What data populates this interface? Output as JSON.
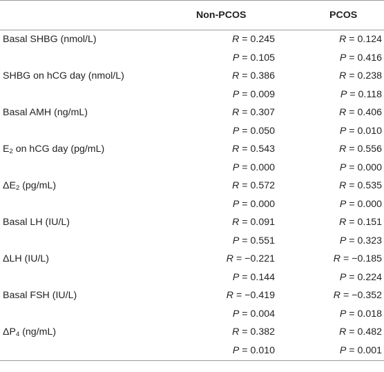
{
  "table": {
    "headers": [
      "",
      "Non-PCOS",
      "PCOS"
    ],
    "rows": [
      {
        "variable": "Basal SHBG (nmol/L)",
        "non_pcos_R": "0.245",
        "non_pcos_P": "0.105",
        "pcos_R": "0.124",
        "pcos_P": "0.416"
      },
      {
        "variable": "SHBG on hCG day (nmol/L)",
        "non_pcos_R": "0.386",
        "non_pcos_P": "0.009",
        "pcos_R": "0.238",
        "pcos_P": "0.118"
      },
      {
        "variable": "Basal AMH (ng/mL)",
        "non_pcos_R": "0.307",
        "non_pcos_P": "0.050",
        "pcos_R": "0.406",
        "pcos_P": "0.010"
      },
      {
        "variable": "E2 on hCG day (pg/mL)",
        "non_pcos_R": "0.543",
        "non_pcos_P": "0.000",
        "pcos_R": "0.556",
        "pcos_P": "0.000"
      },
      {
        "variable": "ΔE2 (pg/mL)",
        "non_pcos_R": "0.572",
        "non_pcos_P": "0.000",
        "pcos_R": "0.535",
        "pcos_P": "0.000"
      },
      {
        "variable": "Basal LH (IU/L)",
        "non_pcos_R": "0.091",
        "non_pcos_P": "0.551",
        "pcos_R": "0.151",
        "pcos_P": "0.323"
      },
      {
        "variable": "ΔLH (IU/L)",
        "non_pcos_R": "−0.221",
        "non_pcos_P": "0.144",
        "pcos_R": "−0.185",
        "pcos_P": "0.224"
      },
      {
        "variable": "Basal FSH (IU/L)",
        "non_pcos_R": "−0.419",
        "non_pcos_P": "0.004",
        "pcos_R": "−0.352",
        "pcos_P": "0.018"
      },
      {
        "variable": "ΔP4 (ng/mL)",
        "non_pcos_R": "0.382",
        "non_pcos_P": "0.010",
        "pcos_R": "0.482",
        "pcos_P": "0.001"
      }
    ]
  }
}
